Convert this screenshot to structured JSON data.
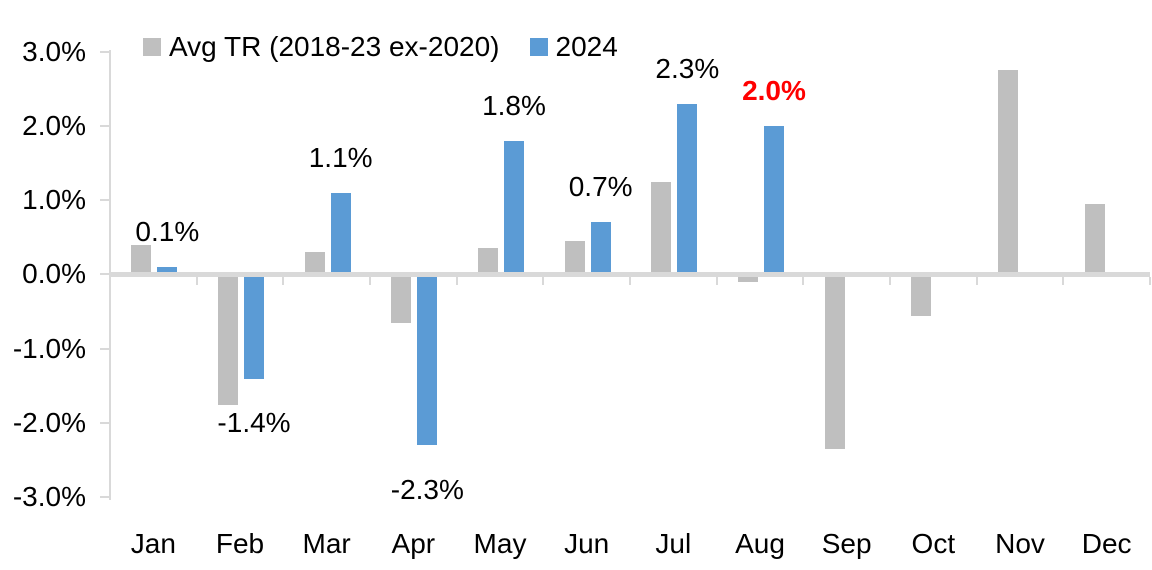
{
  "chart_data": {
    "type": "bar",
    "title": "",
    "xlabel": "",
    "ylabel": "",
    "categories": [
      "Jan",
      "Feb",
      "Mar",
      "Apr",
      "May",
      "Jun",
      "Jul",
      "Aug",
      "Sep",
      "Oct",
      "Nov",
      "Dec"
    ],
    "series": [
      {
        "name": "Avg TR (2018-23 ex-2020)",
        "color": "#bfbfbf",
        "values": [
          0.4,
          -1.75,
          0.3,
          -0.65,
          0.35,
          0.45,
          1.25,
          -0.1,
          -2.35,
          -0.55,
          2.75,
          0.95
        ]
      },
      {
        "name": "2024",
        "color": "#5b9bd5",
        "values": [
          0.1,
          -1.4,
          1.1,
          -2.3,
          1.8,
          0.7,
          2.3,
          2.0,
          null,
          null,
          null,
          null
        ]
      }
    ],
    "data_labels": [
      {
        "month": "Jan",
        "text": "0.1%",
        "color": "#000000",
        "bold": false
      },
      {
        "month": "Feb",
        "text": "-1.4%",
        "color": "#000000",
        "bold": false
      },
      {
        "month": "Mar",
        "text": "1.1%",
        "color": "#000000",
        "bold": false
      },
      {
        "month": "Apr",
        "text": "-2.3%",
        "color": "#000000",
        "bold": false
      },
      {
        "month": "May",
        "text": "1.8%",
        "color": "#000000",
        "bold": false
      },
      {
        "month": "Jun",
        "text": "0.7%",
        "color": "#000000",
        "bold": false
      },
      {
        "month": "Jul",
        "text": "2.3%",
        "color": "#000000",
        "bold": false
      },
      {
        "month": "Aug",
        "text": "2.0%",
        "color": "#ff0000",
        "bold": true
      }
    ],
    "y_ticks": [
      "3.0%",
      "2.0%",
      "1.0%",
      "0.0%",
      "-1.0%",
      "-2.0%",
      "-3.0%"
    ],
    "y_tick_values": [
      3.0,
      2.0,
      1.0,
      0.0,
      -1.0,
      -2.0,
      -3.0
    ],
    "ylim": [
      -3.0,
      3.0
    ],
    "grid": false,
    "legend_position": "top-left",
    "axis_color": "#d9d9d9",
    "background_color": "#ffffff"
  }
}
